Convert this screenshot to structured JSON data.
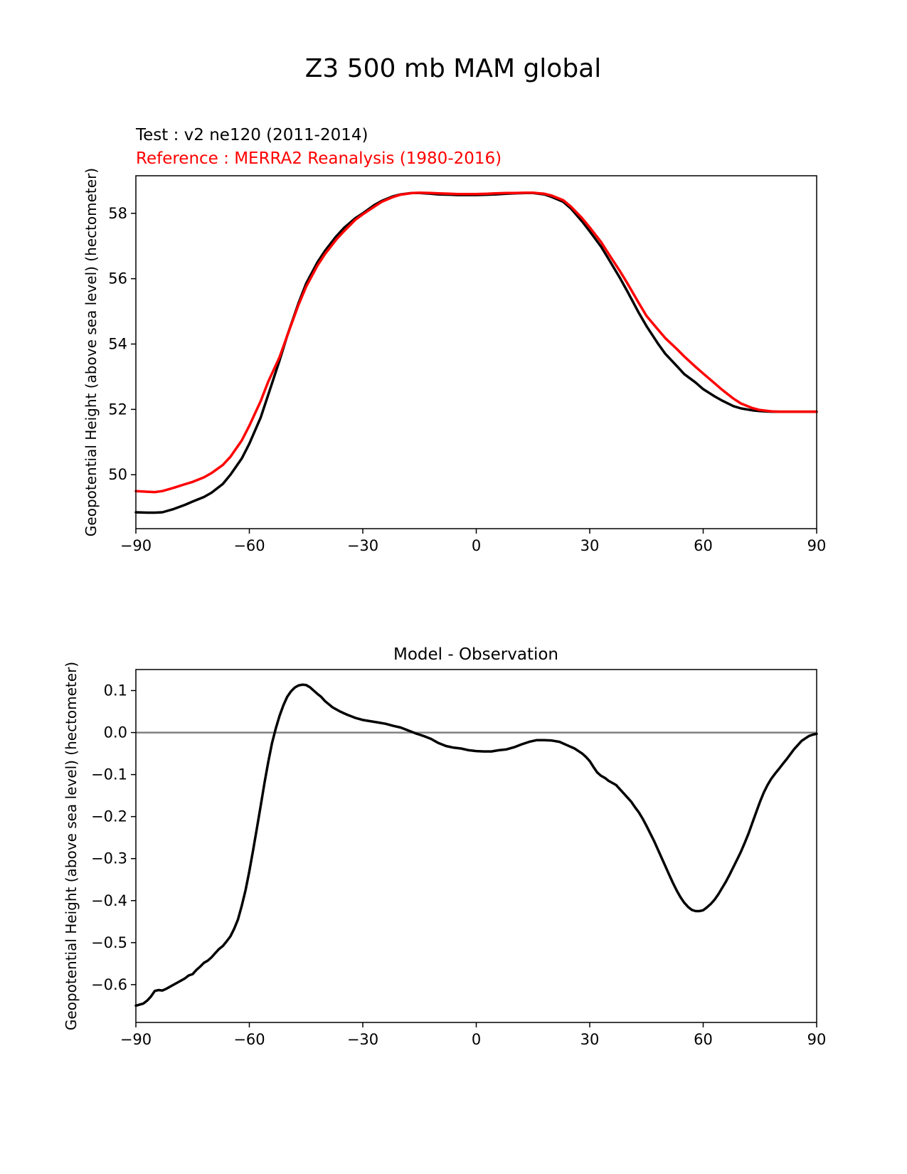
{
  "figure_title": "Z3 500 mb MAM global",
  "colors": {
    "test": "#000000",
    "reference": "#ff0000",
    "zero_line": "#808080"
  },
  "chart_data": [
    {
      "type": "line",
      "legend_test": "Test : v2 ne120 (2011-2014)",
      "legend_reference": "Reference : MERRA2 Reanalysis (1980-2016)",
      "xlabel": "",
      "ylabel": "Geopotential Height (above sea level) (hectometer)",
      "xlim": [
        -90,
        90
      ],
      "ylim": [
        48.35,
        59.15
      ],
      "xticks": [
        -90,
        -60,
        -30,
        0,
        30,
        60,
        90
      ],
      "xtick_labels": [
        "−90",
        "−60",
        "−30",
        "0",
        "30",
        "60",
        "90"
      ],
      "yticks": [
        50,
        52,
        54,
        56,
        58
      ],
      "ytick_labels": [
        "50",
        "52",
        "54",
        "56",
        "58"
      ],
      "series": [
        {
          "name": "Test : v2 ne120 (2011-2014)",
          "x": [
            -90,
            -87,
            -85,
            -83,
            -80,
            -77,
            -75,
            -72,
            -70,
            -67,
            -65,
            -62,
            -60,
            -57,
            -55,
            -52,
            -50,
            -47,
            -45,
            -42,
            -40,
            -37,
            -35,
            -32,
            -30,
            -27,
            -25,
            -22,
            -20,
            -17,
            -15,
            -12,
            -10,
            -7,
            -5,
            -2,
            0,
            3,
            5,
            8,
            10,
            13,
            15,
            18,
            20,
            23,
            25,
            28,
            30,
            33,
            35,
            38,
            40,
            43,
            45,
            48,
            50,
            53,
            55,
            58,
            60,
            63,
            65,
            68,
            70,
            73,
            75,
            78,
            80,
            83,
            85,
            88,
            90
          ],
          "values": [
            48.85,
            48.84,
            48.84,
            48.85,
            48.95,
            49.08,
            49.18,
            49.32,
            49.45,
            49.72,
            50.0,
            50.5,
            50.95,
            51.75,
            52.45,
            53.5,
            54.25,
            55.25,
            55.85,
            56.5,
            56.85,
            57.3,
            57.55,
            57.85,
            58.0,
            58.25,
            58.38,
            58.52,
            58.58,
            58.62,
            58.62,
            58.6,
            58.58,
            58.57,
            58.56,
            58.56,
            58.56,
            58.57,
            58.58,
            58.6,
            58.61,
            58.62,
            58.62,
            58.58,
            58.5,
            58.35,
            58.15,
            57.75,
            57.45,
            56.98,
            56.6,
            56.02,
            55.6,
            54.95,
            54.55,
            54.02,
            53.7,
            53.33,
            53.08,
            52.82,
            52.62,
            52.4,
            52.27,
            52.1,
            52.03,
            51.97,
            51.95,
            51.93,
            51.93,
            51.93,
            51.93,
            51.93,
            51.93
          ]
        },
        {
          "name": "Reference : MERRA2 Reanalysis (1980-2016)",
          "x": [
            -90,
            -87,
            -85,
            -83,
            -80,
            -77,
            -75,
            -72,
            -70,
            -67,
            -65,
            -62,
            -60,
            -57,
            -55,
            -52,
            -50,
            -47,
            -45,
            -42,
            -40,
            -37,
            -35,
            -32,
            -30,
            -27,
            -25,
            -22,
            -20,
            -17,
            -15,
            -12,
            -10,
            -7,
            -5,
            -2,
            0,
            3,
            5,
            8,
            10,
            13,
            15,
            18,
            20,
            23,
            25,
            28,
            30,
            33,
            35,
            38,
            40,
            43,
            45,
            48,
            50,
            53,
            55,
            58,
            60,
            63,
            65,
            68,
            70,
            73,
            75,
            78,
            80,
            83,
            85,
            88,
            90
          ],
          "values": [
            49.5,
            49.48,
            49.47,
            49.5,
            49.6,
            49.71,
            49.78,
            49.92,
            50.05,
            50.3,
            50.55,
            51.05,
            51.5,
            52.25,
            52.85,
            53.6,
            54.25,
            55.2,
            55.75,
            56.4,
            56.75,
            57.2,
            57.45,
            57.8,
            57.97,
            58.2,
            58.35,
            58.5,
            58.57,
            58.62,
            58.63,
            58.62,
            58.61,
            58.6,
            58.59,
            58.59,
            58.59,
            58.6,
            58.61,
            58.62,
            58.62,
            58.63,
            58.63,
            58.6,
            58.54,
            58.4,
            58.21,
            57.85,
            57.57,
            57.12,
            56.76,
            56.23,
            55.85,
            55.25,
            54.86,
            54.45,
            54.18,
            53.85,
            53.62,
            53.3,
            53.1,
            52.8,
            52.6,
            52.33,
            52.18,
            52.04,
            51.98,
            51.94,
            51.93,
            51.93,
            51.93,
            51.93,
            51.93
          ]
        }
      ]
    },
    {
      "type": "line",
      "title": "Model - Observation",
      "xlabel": "",
      "ylabel": "Geopotential Height (above sea level) (hectometer)",
      "xlim": [
        -90,
        90
      ],
      "ylim": [
        -0.69,
        0.15
      ],
      "xticks": [
        -90,
        -60,
        -30,
        0,
        30,
        60,
        90
      ],
      "xtick_labels": [
        "−90",
        "−60",
        "−30",
        "0",
        "30",
        "60",
        "90"
      ],
      "yticks": [
        0.1,
        0.0,
        -0.1,
        -0.2,
        -0.3,
        -0.4,
        -0.5,
        -0.6
      ],
      "ytick_labels": [
        "0.1",
        "0.0",
        "−0.1",
        "−0.2",
        "−0.3",
        "−0.4",
        "−0.5",
        "−0.6"
      ],
      "zero_line": 0.0,
      "series": [
        {
          "name": "Model - Observation",
          "x": [
            -90,
            -88,
            -87,
            -86,
            -85,
            -84,
            -83,
            -82,
            -80,
            -78,
            -77,
            -76,
            -75,
            -74,
            -73,
            -72,
            -71,
            -70,
            -69,
            -68,
            -67,
            -66,
            -65,
            -64,
            -63,
            -62,
            -61,
            -60,
            -59,
            -58,
            -57,
            -56,
            -55,
            -54,
            -53,
            -52,
            -51,
            -50,
            -49,
            -48,
            -47,
            -46,
            -45,
            -44,
            -43,
            -42,
            -41,
            -40,
            -38,
            -36,
            -34,
            -32,
            -30,
            -28,
            -26,
            -24,
            -22,
            -20,
            -18,
            -16,
            -15,
            -14,
            -12,
            -10,
            -8,
            -6,
            -4,
            -2,
            0,
            2,
            4,
            6,
            8,
            10,
            12,
            14,
            16,
            18,
            20,
            22,
            24,
            26,
            27,
            28,
            29,
            30,
            31,
            32,
            33,
            34,
            35,
            36,
            37,
            38,
            39,
            40,
            41,
            42,
            43,
            44,
            45,
            46,
            47,
            48,
            49,
            50,
            51,
            52,
            53,
            54,
            55,
            56,
            57,
            58,
            59,
            60,
            61,
            62,
            63,
            64,
            65,
            66,
            67,
            68,
            69,
            70,
            71,
            72,
            73,
            74,
            75,
            76,
            77,
            78,
            79,
            80,
            81,
            82,
            83,
            84,
            85,
            86,
            87,
            88,
            89,
            90
          ],
          "values": [
            -0.65,
            -0.645,
            -0.638,
            -0.628,
            -0.615,
            -0.613,
            -0.614,
            -0.61,
            -0.6,
            -0.59,
            -0.585,
            -0.578,
            -0.575,
            -0.565,
            -0.557,
            -0.548,
            -0.543,
            -0.535,
            -0.525,
            -0.515,
            -0.508,
            -0.497,
            -0.485,
            -0.467,
            -0.445,
            -0.412,
            -0.375,
            -0.33,
            -0.28,
            -0.228,
            -0.175,
            -0.12,
            -0.07,
            -0.025,
            0.01,
            0.04,
            0.065,
            0.085,
            0.098,
            0.107,
            0.112,
            0.114,
            0.113,
            0.108,
            0.1,
            0.092,
            0.085,
            0.075,
            0.06,
            0.05,
            0.042,
            0.035,
            0.03,
            0.027,
            0.024,
            0.021,
            0.016,
            0.012,
            0.005,
            -0.002,
            -0.005,
            -0.008,
            -0.015,
            -0.025,
            -0.032,
            -0.036,
            -0.038,
            -0.042,
            -0.044,
            -0.045,
            -0.045,
            -0.042,
            -0.04,
            -0.035,
            -0.028,
            -0.022,
            -0.018,
            -0.018,
            -0.019,
            -0.022,
            -0.03,
            -0.038,
            -0.044,
            -0.05,
            -0.058,
            -0.068,
            -0.082,
            -0.095,
            -0.103,
            -0.108,
            -0.115,
            -0.12,
            -0.125,
            -0.135,
            -0.145,
            -0.155,
            -0.165,
            -0.178,
            -0.19,
            -0.205,
            -0.222,
            -0.24,
            -0.258,
            -0.278,
            -0.298,
            -0.318,
            -0.338,
            -0.358,
            -0.376,
            -0.392,
            -0.405,
            -0.415,
            -0.422,
            -0.425,
            -0.425,
            -0.423,
            -0.416,
            -0.408,
            -0.398,
            -0.385,
            -0.37,
            -0.355,
            -0.338,
            -0.32,
            -0.302,
            -0.283,
            -0.262,
            -0.24,
            -0.215,
            -0.19,
            -0.165,
            -0.143,
            -0.125,
            -0.11,
            -0.098,
            -0.087,
            -0.075,
            -0.064,
            -0.052,
            -0.04,
            -0.03,
            -0.02,
            -0.014,
            -0.008,
            -0.005,
            -0.003
          ]
        }
      ]
    }
  ]
}
